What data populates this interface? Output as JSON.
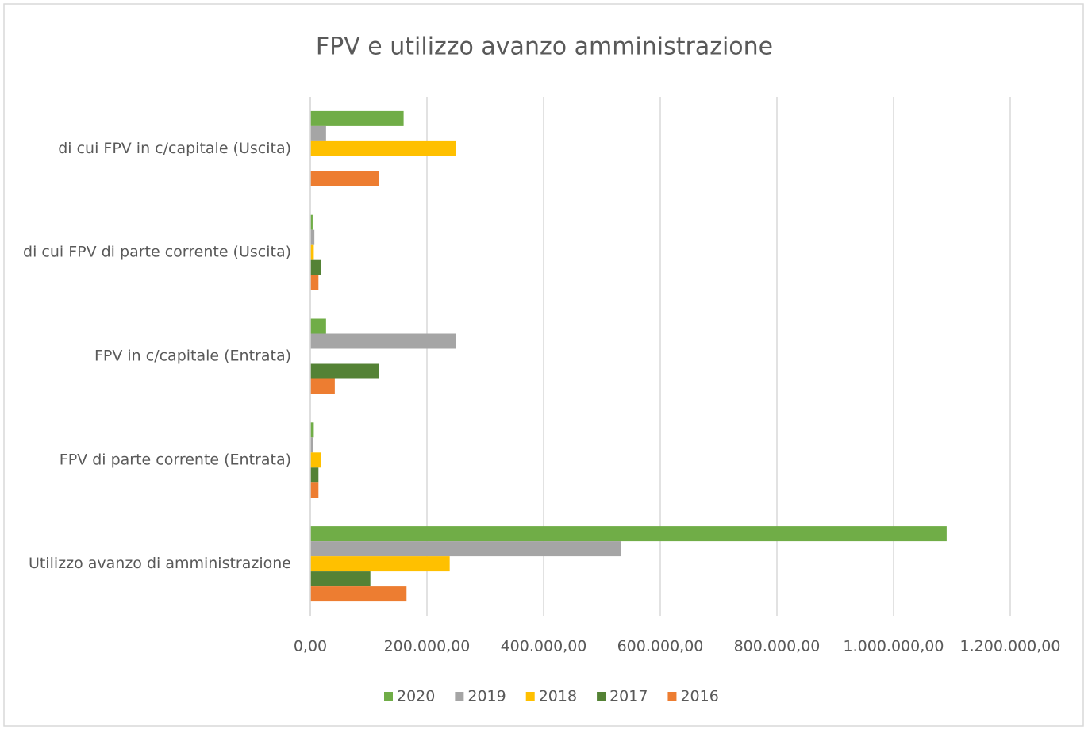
{
  "chart_data": {
    "type": "hbar",
    "title": "FPV e utilizzo avanzo amministrazione",
    "categories": [
      "di cui FPV in c/capitale (Uscita)",
      "di cui FPV di parte corrente (Uscita)",
      "FPV in c/capitale (Entrata)",
      "FPV di parte corrente (Entrata)",
      "Utilizzo avanzo di amministrazione"
    ],
    "series": [
      {
        "name": "2020",
        "color": "#70ad47",
        "values": [
          160000,
          4000,
          27000,
          6000,
          1091000
        ]
      },
      {
        "name": "2019",
        "color": "#a5a5a5",
        "values": [
          27000,
          7000,
          249000,
          5000,
          533000
        ]
      },
      {
        "name": "2018",
        "color": "#ffc000",
        "values": [
          249000,
          6000,
          0,
          19000,
          239000
        ]
      },
      {
        "name": "2017",
        "color": "#548235",
        "values": [
          0,
          19000,
          118000,
          14000,
          103000
        ]
      },
      {
        "name": "2016",
        "color": "#ed7d31",
        "values": [
          118000,
          14000,
          42000,
          14000,
          165000
        ]
      }
    ],
    "xlim": [
      0,
      1200000
    ],
    "xticks": [
      {
        "value": 0,
        "label": "0,00"
      },
      {
        "value": 200000,
        "label": "200.000,00"
      },
      {
        "value": 400000,
        "label": "400.000,00"
      },
      {
        "value": 600000,
        "label": "600.000,00"
      },
      {
        "value": 800000,
        "label": "800.000,00"
      },
      {
        "value": 1000000,
        "label": "1.000.000,00"
      },
      {
        "value": 1200000,
        "label": "1.200.000,00"
      }
    ],
    "grid": true,
    "legend": "bottom"
  }
}
